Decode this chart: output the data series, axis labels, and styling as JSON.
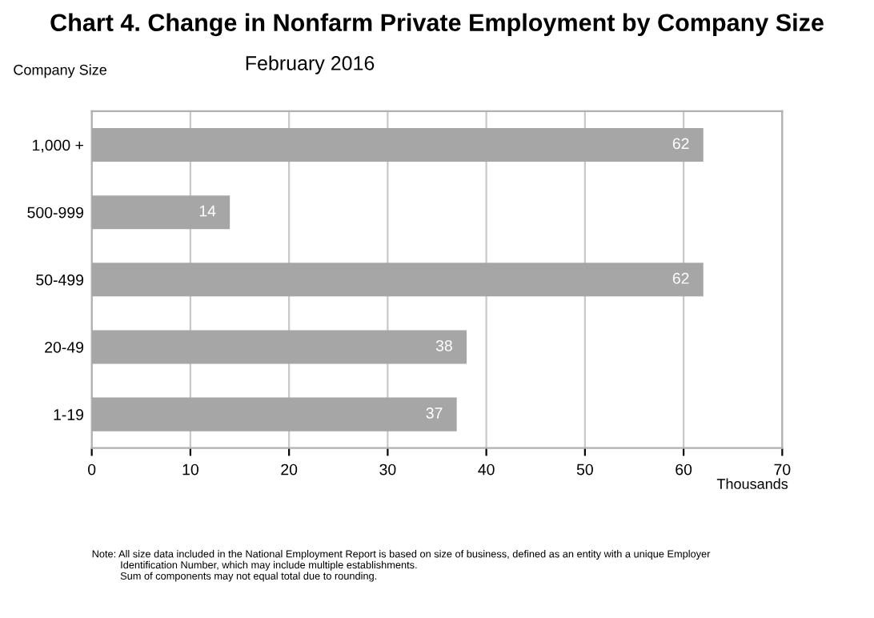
{
  "chart_data": {
    "type": "bar",
    "orientation": "horizontal",
    "title": "Chart 4. Change in Nonfarm Private Employment by Company Size",
    "subtitle": "February 2016",
    "ylabel": "Company Size",
    "xlabel": "Thousands",
    "categories": [
      "1,000 +",
      "500-999",
      "50-499",
      "20-49",
      "1-19"
    ],
    "values": [
      62,
      14,
      62,
      38,
      37
    ],
    "color": "#a6a6a6",
    "data_labels": true,
    "xlim": [
      0,
      70
    ],
    "xticks": [
      0,
      10,
      20,
      30,
      40,
      50,
      60,
      70
    ],
    "grid": "x",
    "annotations": [
      "Note: All size data included in the National Employment Report is based on size of business, defined as an entity with a unique Employer\n          Identification Number, which may include multiple establishments.\n          Sum of components may not equal total due to rounding."
    ]
  }
}
